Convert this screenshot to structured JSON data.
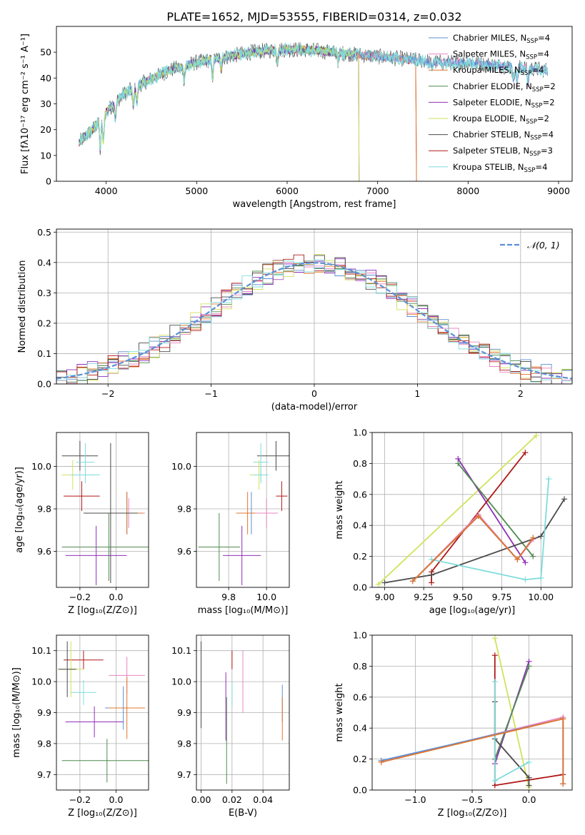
{
  "colors": {
    "Chabrier MILES": "#5b8fd6",
    "Salpeter MILES": "#e884c0",
    "Kroupa MILES": "#e2762b",
    "Chabrier ELODIE": "#4f8a4f",
    "Salpeter ELODIE": "#8f2fb8",
    "Kroupa ELODIE": "#d2e25a",
    "Chabrier STELIB": "#4a4a4a",
    "Salpeter STELIB": "#b01818",
    "Kroupa STELIB": "#7fdcdc"
  },
  "chart_data": [
    {
      "id": "spectrum",
      "type": "line",
      "title": "PLATE=1652, MJD=53555, FIBERID=0314, z=0.032",
      "xlabel": "wavelength [Angstrom, rest frame]",
      "ylabel": "Flux [fλ10⁻¹⁷ erg cm⁻² s⁻¹ A⁻¹]",
      "xlim": [
        3450,
        9150
      ],
      "ylim": [
        0,
        60
      ],
      "xticks": [
        4000,
        5000,
        6000,
        7000,
        8000,
        9000
      ],
      "yticks": [
        0,
        10,
        20,
        30,
        40,
        50
      ],
      "legend": "upper-right",
      "legend_entries": [
        {
          "model": "Chabrier MILES",
          "label": "Chabrier MILES, N",
          "sub": "SSP",
          "tail": "=4"
        },
        {
          "model": "Salpeter MILES",
          "label": "Salpeter MILES, N",
          "sub": "SSP",
          "tail": "=4"
        },
        {
          "model": "Kroupa MILES",
          "label": "Kroupa MILES, N",
          "sub": "SSP",
          "tail": "=4"
        },
        {
          "model": "Chabrier ELODIE",
          "label": "Chabrier ELODIE, N",
          "sub": "SSP",
          "tail": "=2"
        },
        {
          "model": "Salpeter ELODIE",
          "label": "Salpeter ELODIE, N",
          "sub": "SSP",
          "tail": "=2"
        },
        {
          "model": "Kroupa ELODIE",
          "label": "Kroupa ELODIE, N",
          "sub": "SSP",
          "tail": "=2"
        },
        {
          "model": "Chabrier STELIB",
          "label": "Chabrier STELIB, N",
          "sub": "SSP",
          "tail": "=4"
        },
        {
          "model": "Salpeter STELIB",
          "label": "Salpeter STELIB, N",
          "sub": "SSP",
          "tail": "=3"
        },
        {
          "model": "Kroupa STELIB",
          "label": "Kroupa STELIB, N",
          "sub": "SSP",
          "tail": "=4"
        }
      ],
      "continuum_x": [
        3700,
        3850,
        4000,
        4200,
        4400,
        4700,
        5000,
        5300,
        5600,
        5900,
        6200,
        6500,
        6800,
        7100,
        7400,
        7700,
        8000,
        8300,
        8600,
        8900
      ],
      "continuum_y": [
        15,
        20,
        27,
        34,
        38,
        43,
        46,
        48,
        50,
        51,
        51,
        50,
        49,
        48,
        47,
        46,
        46,
        45,
        44,
        43
      ]
    },
    {
      "id": "residuals",
      "type": "histogram",
      "xlabel": "(data-model)/error",
      "ylabel": "Normed distribution",
      "xlim": [
        -2.5,
        2.5
      ],
      "ylim": [
        0,
        0.51
      ],
      "xticks": [
        -2,
        -1,
        0,
        1,
        2
      ],
      "yticks": [
        0.0,
        0.1,
        0.2,
        0.3,
        0.4,
        0.5
      ],
      "legend": "upper-right",
      "reference_label": "𝒩(0, 1)",
      "reference_color": "#5b8fd6",
      "bin_width": 0.1
    },
    {
      "id": "age-vs-Z",
      "type": "errorbar",
      "xlabel": "Z [log₁₀(Z/Z⊙)]",
      "ylabel": "age  [log₁₀(age/yr)]",
      "xlim": [
        -0.33,
        0.18
      ],
      "ylim": [
        9.43,
        10.16
      ],
      "xticks": [
        -0.2,
        0.0
      ],
      "yticks": [
        9.6,
        9.8,
        10.0
      ],
      "points": [
        {
          "model": "Chabrier STELIB",
          "x": -0.2,
          "xerr": 0.1,
          "y": 10.05,
          "yerr": 0.07
        },
        {
          "model": "Kroupa STELIB",
          "x": -0.17,
          "xerr": 0.05,
          "y": 10.02,
          "yerr": 0.09
        },
        {
          "model": "Kroupa ELODIE",
          "x": -0.24,
          "xerr": 0.06,
          "y": 9.96,
          "yerr": 0.07
        },
        {
          "model": "Kroupa STELIB",
          "x": -0.17,
          "xerr": 0.08,
          "y": 9.96,
          "yerr": 0.04
        },
        {
          "model": "Salpeter STELIB",
          "x": -0.19,
          "xerr": 0.1,
          "y": 9.86,
          "yerr": 0.07
        },
        {
          "model": "Chabrier MILES",
          "x": 0.06,
          "xerr": 0.09,
          "y": 9.78,
          "yerr": 0.1
        },
        {
          "model": "Salpeter MILES",
          "x": 0.07,
          "xerr": 0.09,
          "y": 9.78,
          "yerr": 0.07
        },
        {
          "model": "Kroupa MILES",
          "x": 0.06,
          "xerr": 0.09,
          "y": 9.78,
          "yerr": 0.1
        },
        {
          "model": "Chabrier STELIB",
          "x": -0.03,
          "xerr": 0.15,
          "y": 9.78,
          "yerr": 0.33
        },
        {
          "model": "Chabrier ELODIE",
          "x": -0.04,
          "xerr": 0.26,
          "y": 9.62,
          "yerr": 0.16
        },
        {
          "model": "Salpeter ELODIE",
          "x": -0.11,
          "xerr": 0.17,
          "y": 9.58,
          "yerr": 0.14
        }
      ]
    },
    {
      "id": "age-vs-mass",
      "type": "errorbar",
      "xlabel": "mass [log₁₀(M/M⊙)]",
      "ylabel": "",
      "xlim": [
        9.63,
        10.12
      ],
      "ylim": [
        9.43,
        10.16
      ],
      "xticks": [
        9.8,
        10.0
      ],
      "yticks": [
        9.6,
        9.8,
        10.0
      ],
      "points": [
        {
          "model": "Chabrier STELIB",
          "x": 10.05,
          "xerr": 0.1,
          "y": 10.05,
          "yerr": 0.07
        },
        {
          "model": "Kroupa STELIB",
          "x": 9.97,
          "xerr": 0.04,
          "y": 10.02,
          "yerr": 0.09
        },
        {
          "model": "Kroupa ELODIE",
          "x": 9.96,
          "xerr": 0.05,
          "y": 9.96,
          "yerr": 0.07
        },
        {
          "model": "Kroupa STELIB",
          "x": 9.97,
          "xerr": 0.04,
          "y": 9.96,
          "yerr": 0.04
        },
        {
          "model": "Salpeter STELIB",
          "x": 10.08,
          "xerr": 0.03,
          "y": 9.86,
          "yerr": 0.07
        },
        {
          "model": "Chabrier MILES",
          "x": 9.92,
          "xerr": 0.08,
          "y": 9.78,
          "yerr": 0.1
        },
        {
          "model": "Kroupa MILES",
          "x": 9.9,
          "xerr": 0.06,
          "y": 9.78,
          "yerr": 0.1
        },
        {
          "model": "Salpeter MILES",
          "x": 10.0,
          "xerr": 0.06,
          "y": 9.78,
          "yerr": 0.07
        },
        {
          "model": "Chabrier ELODIE",
          "x": 9.75,
          "xerr": 0.11,
          "y": 9.62,
          "yerr": 0.16
        },
        {
          "model": "Salpeter ELODIE",
          "x": 9.87,
          "xerr": 0.1,
          "y": 9.58,
          "yerr": 0.14
        }
      ]
    },
    {
      "id": "weight-vs-age",
      "type": "line",
      "xlabel": "age  [log₁₀(age/yr)]",
      "ylabel": "mass weight",
      "xlim": [
        8.92,
        10.2
      ],
      "ylim": [
        0,
        1
      ],
      "xticks": [
        9.0,
        9.25,
        9.5,
        9.75,
        10.0
      ],
      "yticks": [
        0.0,
        0.2,
        0.4,
        0.6,
        0.8,
        1.0
      ],
      "series": [
        {
          "model": "Kroupa ELODIE",
          "x": [
            8.96,
            9.97
          ],
          "y": [
            0.02,
            0.98
          ]
        },
        {
          "model": "Salpeter ELODIE",
          "x": [
            9.47,
            9.9
          ],
          "y": [
            0.83,
            0.16
          ]
        },
        {
          "model": "Chabrier ELODIE",
          "x": [
            9.47,
            9.95
          ],
          "y": [
            0.8,
            0.2
          ]
        },
        {
          "model": "Salpeter STELIB",
          "x": [
            9.3,
            9.3,
            9.9
          ],
          "y": [
            0.03,
            0.1,
            0.87
          ]
        },
        {
          "model": "Chabrier STELIB",
          "x": [
            9.0,
            9.3,
            10.0,
            10.15
          ],
          "y": [
            0.03,
            0.08,
            0.33,
            0.57
          ]
        },
        {
          "model": "Kroupa STELIB",
          "x": [
            9.3,
            9.9,
            10.0,
            10.05
          ],
          "y": [
            0.18,
            0.05,
            0.06,
            0.7
          ]
        },
        {
          "model": "Salpeter MILES",
          "x": [
            9.18,
            9.6,
            9.85,
            9.95
          ],
          "y": [
            0.04,
            0.47,
            0.18,
            0.31
          ]
        },
        {
          "model": "Chabrier MILES",
          "x": [
            9.18,
            9.6,
            9.85,
            9.95
          ],
          "y": [
            0.04,
            0.46,
            0.18,
            0.32
          ]
        },
        {
          "model": "Kroupa MILES",
          "x": [
            9.18,
            9.6,
            9.85,
            9.95
          ],
          "y": [
            0.04,
            0.46,
            0.18,
            0.32
          ]
        }
      ]
    },
    {
      "id": "mass-vs-Z",
      "type": "errorbar",
      "xlabel": "Z [log₁₀(Z/Z⊙)]",
      "ylabel": "mass [log₁₀(M/M⊙)]",
      "xlim": [
        -0.33,
        0.18
      ],
      "ylim": [
        9.65,
        10.15
      ],
      "xticks": [
        -0.2,
        0.0
      ],
      "yticks": [
        9.7,
        9.8,
        9.9,
        10.0,
        10.1
      ],
      "points": [
        {
          "model": "Salpeter STELIB",
          "x": -0.18,
          "xerr": 0.11,
          "y": 10.07,
          "yerr": 0.03
        },
        {
          "model": "Kroupa ELODIE",
          "x": -0.25,
          "xerr": 0.07,
          "y": 10.04,
          "yerr": 0.09
        },
        {
          "model": "Chabrier STELIB",
          "x": -0.27,
          "xerr": 0.05,
          "y": 10.04,
          "yerr": 0.09
        },
        {
          "model": "Salpeter MILES",
          "x": 0.06,
          "xerr": 0.1,
          "y": 10.02,
          "yerr": 0.06
        },
        {
          "model": "Kroupa STELIB",
          "x": -0.18,
          "xerr": 0.07,
          "y": 9.965,
          "yerr": 0.04
        },
        {
          "model": "Chabrier MILES",
          "x": 0.04,
          "xerr": 0.1,
          "y": 9.915,
          "yerr": 0.07
        },
        {
          "model": "Kroupa MILES",
          "x": 0.06,
          "xerr": 0.1,
          "y": 9.915,
          "yerr": 0.1
        },
        {
          "model": "Salpeter ELODIE",
          "x": -0.12,
          "xerr": 0.16,
          "y": 9.87,
          "yerr": 0.05
        },
        {
          "model": "Chabrier ELODIE",
          "x": -0.05,
          "xerr": 0.25,
          "y": 9.745,
          "yerr": 0.07
        }
      ]
    },
    {
      "id": "mass-vs-EBV",
      "type": "errorbar",
      "xlabel": "E(B-V)",
      "ylabel": "",
      "xlim": [
        -0.003,
        0.057
      ],
      "ylim": [
        9.65,
        10.15
      ],
      "xticks": [
        0.0,
        0.02,
        0.04
      ],
      "yticks": [
        9.7,
        9.8,
        9.9,
        10.0,
        10.1
      ],
      "points": [
        {
          "model": "Chabrier STELIB",
          "x": 0.0,
          "xerr": 0,
          "y": 9.99,
          "yerr": 0.14
        },
        {
          "model": "Salpeter STELIB",
          "x": 0.02,
          "xerr": 0,
          "y": 10.07,
          "yerr": 0.03
        },
        {
          "model": "Kroupa STELIB",
          "x": 0.02,
          "xerr": 0,
          "y": 9.96,
          "yerr": 0.04
        },
        {
          "model": "Salpeter ELODIE",
          "x": 0.016,
          "xerr": 0,
          "y": 9.92,
          "yerr": 0.11
        },
        {
          "model": "Chabrier ELODIE",
          "x": 0.0165,
          "xerr": 0,
          "y": 9.81,
          "yerr": 0.14
        },
        {
          "model": "Salpeter MILES",
          "x": 0.027,
          "xerr": 0,
          "y": 10.0,
          "yerr": 0.1
        },
        {
          "model": "Chabrier MILES",
          "x": 0.0525,
          "xerr": 0,
          "y": 9.93,
          "yerr": 0.06
        },
        {
          "model": "Kroupa MILES",
          "x": 0.0525,
          "xerr": 0,
          "y": 9.88,
          "yerr": 0.07
        }
      ]
    },
    {
      "id": "weight-vs-Z",
      "type": "line",
      "xlabel": "Z [log₁₀(Z/Z⊙)]",
      "ylabel": "mass weight",
      "xlim": [
        -1.38,
        0.38
      ],
      "ylim": [
        0,
        1
      ],
      "xticks": [
        -1.0,
        -0.5,
        0.0
      ],
      "yticks": [
        0.0,
        0.2,
        0.4,
        0.6,
        0.8,
        1.0
      ],
      "series": [
        {
          "model": "Kroupa ELODIE",
          "x": [
            -0.3,
            0.0
          ],
          "y": [
            0.98,
            0.02
          ]
        },
        {
          "model": "Salpeter ELODIE",
          "x": [
            -0.3,
            0.0
          ],
          "y": [
            0.17,
            0.83
          ]
        },
        {
          "model": "Chabrier ELODIE",
          "x": [
            -0.3,
            0.0
          ],
          "y": [
            0.2,
            0.8
          ]
        },
        {
          "model": "Salpeter STELIB",
          "x": [
            -0.3,
            -0.3,
            0.3
          ],
          "y": [
            0.87,
            0.03,
            0.1
          ]
        },
        {
          "model": "Chabrier STELIB",
          "x": [
            -0.3,
            -0.3,
            0.0,
            0.0
          ],
          "y": [
            0.57,
            0.33,
            0.08,
            0.03
          ]
        },
        {
          "model": "Kroupa STELIB",
          "x": [
            -0.3,
            -0.3,
            0.0
          ],
          "y": [
            0.7,
            0.06,
            0.18
          ]
        },
        {
          "model": "Salpeter MILES",
          "x": [
            -1.3,
            0.3,
            0.3
          ],
          "y": [
            0.18,
            0.47,
            0.04
          ]
        },
        {
          "model": "Chabrier MILES",
          "x": [
            -1.3,
            0.3,
            0.3
          ],
          "y": [
            0.19,
            0.46,
            0.04
          ]
        },
        {
          "model": "Kroupa MILES",
          "x": [
            -1.3,
            0.3,
            0.3
          ],
          "y": [
            0.18,
            0.46,
            0.04
          ]
        }
      ]
    }
  ]
}
